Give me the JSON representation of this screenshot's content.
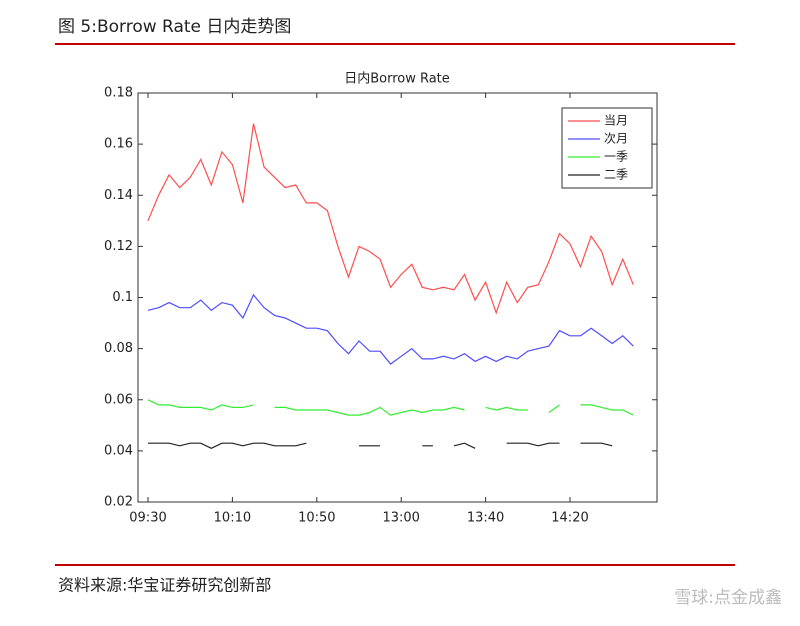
{
  "caption": "图 5:Borrow Rate 日内走势图",
  "source": "资料来源:华宝证券研究创新部",
  "watermark": "雪球:点金成鑫",
  "chart_data": {
    "type": "line",
    "title": "日内Borrow Rate",
    "categories": [
      "09:30",
      null,
      null,
      null,
      null,
      null,
      null,
      null,
      "10:10",
      null,
      null,
      null,
      null,
      null,
      null,
      null,
      "10:50",
      null,
      null,
      null,
      null,
      null,
      null,
      null,
      "13:00",
      null,
      null,
      null,
      null,
      null,
      null,
      null,
      "13:40",
      null,
      null,
      null,
      null,
      null,
      null,
      null,
      "14:20",
      null,
      null,
      null,
      null,
      null,
      null
    ],
    "ylim": [
      0.02,
      0.18
    ],
    "yticks": [
      0.02,
      0.04,
      0.06,
      0.08,
      0.1,
      0.12,
      0.14,
      0.16,
      0.18
    ],
    "legend": "upper right",
    "series": [
      {
        "name": "当月",
        "color": "#ff4d4d",
        "values": [
          0.13,
          0.14,
          0.148,
          0.143,
          0.147,
          0.154,
          0.144,
          0.157,
          0.152,
          0.137,
          0.168,
          0.151,
          0.147,
          0.143,
          0.144,
          0.137,
          0.137,
          0.134,
          0.12,
          0.108,
          0.12,
          0.118,
          0.115,
          0.104,
          0.109,
          0.113,
          0.104,
          0.103,
          0.104,
          0.103,
          0.109,
          0.099,
          0.106,
          0.094,
          0.106,
          0.098,
          0.104,
          0.105,
          0.114,
          0.125,
          0.121,
          0.112,
          0.124,
          0.118,
          0.105,
          0.115,
          0.105
        ]
      },
      {
        "name": "次月",
        "color": "#4d4dff",
        "values": [
          0.095,
          0.096,
          0.098,
          0.096,
          0.096,
          0.099,
          0.095,
          0.098,
          0.097,
          0.092,
          0.101,
          0.096,
          0.093,
          0.092,
          0.09,
          0.088,
          0.088,
          0.087,
          0.082,
          0.078,
          0.083,
          0.079,
          0.079,
          0.074,
          0.077,
          0.08,
          0.076,
          0.076,
          0.077,
          0.076,
          0.078,
          0.075,
          0.077,
          0.075,
          0.077,
          0.076,
          0.079,
          0.08,
          0.081,
          0.087,
          0.085,
          0.085,
          0.088,
          0.085,
          0.082,
          0.085,
          0.081
        ]
      },
      {
        "name": "一季",
        "color": "#33ee33",
        "values": [
          0.06,
          0.058,
          0.058,
          0.057,
          0.057,
          0.057,
          0.056,
          0.058,
          0.057,
          0.057,
          0.058,
          null,
          0.057,
          0.057,
          0.056,
          0.056,
          0.056,
          0.056,
          0.055,
          0.054,
          0.054,
          0.055,
          0.057,
          0.054,
          0.055,
          0.056,
          0.055,
          0.056,
          0.056,
          0.057,
          0.056,
          null,
          0.057,
          0.056,
          0.057,
          0.056,
          0.056,
          null,
          0.055,
          0.058,
          null,
          0.058,
          0.058,
          0.057,
          0.056,
          0.056,
          0.054
        ]
      },
      {
        "name": "二季",
        "color": "#222222",
        "values": [
          0.043,
          0.043,
          0.043,
          0.042,
          0.043,
          0.043,
          0.041,
          0.043,
          0.043,
          0.042,
          0.043,
          0.043,
          0.042,
          0.042,
          0.042,
          0.043,
          null,
          null,
          null,
          null,
          0.042,
          0.042,
          0.042,
          null,
          null,
          null,
          0.042,
          0.042,
          null,
          0.042,
          0.043,
          0.041,
          null,
          null,
          0.043,
          0.043,
          0.043,
          0.042,
          0.043,
          0.043,
          null,
          0.043,
          0.043,
          0.043,
          0.042,
          null,
          null
        ]
      }
    ]
  }
}
